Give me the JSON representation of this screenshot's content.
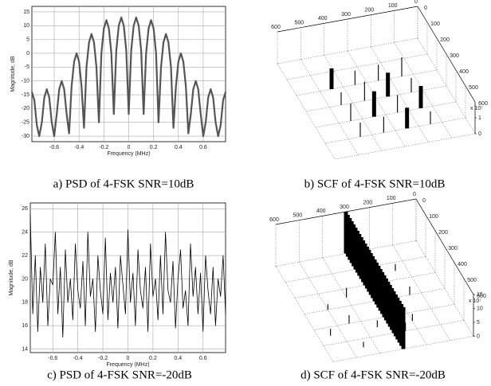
{
  "chart_data": [
    {
      "type": "line",
      "caption": "a) PSD of 4-FSK SNR=10dB",
      "x_label": "Frequency (MHz)",
      "y_label": "Magnitude, dB",
      "x": [
        -0.78,
        -0.76,
        -0.74,
        -0.72,
        -0.7,
        -0.68,
        -0.66,
        -0.64,
        -0.62,
        -0.6,
        -0.58,
        -0.56,
        -0.54,
        -0.52,
        -0.5,
        -0.48,
        -0.46,
        -0.44,
        -0.42,
        -0.4,
        -0.38,
        -0.36,
        -0.34,
        -0.32,
        -0.3,
        -0.28,
        -0.26,
        -0.24,
        -0.22,
        -0.2,
        -0.18,
        -0.16,
        -0.14,
        -0.12,
        -0.1,
        -0.08,
        -0.06,
        -0.04,
        -0.02,
        0,
        0.02,
        0.04,
        0.06,
        0.08,
        0.1,
        0.12,
        0.14,
        0.16,
        0.18,
        0.2,
        0.22,
        0.24,
        0.26,
        0.28,
        0.3,
        0.32,
        0.34,
        0.36,
        0.38,
        0.4,
        0.42,
        0.44,
        0.46,
        0.48,
        0.5,
        0.52,
        0.54,
        0.56,
        0.58,
        0.6,
        0.62,
        0.64,
        0.66,
        0.68,
        0.7,
        0.72,
        0.74,
        0.76,
        0.78
      ],
      "values": [
        -14,
        -17,
        -26,
        -30,
        -25,
        -16,
        -13,
        -16,
        -25,
        -30,
        -22,
        -13,
        -10,
        -13,
        -22,
        -29,
        -12,
        -3,
        0,
        -3,
        -12,
        -27,
        -5,
        4,
        7,
        4,
        -5,
        -25,
        0,
        9,
        12,
        9,
        0,
        -22,
        1,
        10,
        13,
        10,
        1,
        -22,
        1,
        10,
        13,
        10,
        1,
        -22,
        0,
        9,
        12,
        9,
        0,
        -25,
        -5,
        4,
        7,
        4,
        -5,
        -27,
        -12,
        -3,
        0,
        -3,
        -12,
        -29,
        -22,
        -13,
        -10,
        -13,
        -22,
        -30,
        -25,
        -16,
        -13,
        -16,
        -25,
        -30,
        -26,
        -17,
        -14
      ],
      "color": "#555555",
      "xlim": [
        -0.78,
        0.78
      ],
      "ylim": [
        -32,
        17
      ],
      "xticks": [
        -0.6,
        -0.4,
        -0.2,
        0,
        0.2,
        0.4,
        0.6
      ],
      "yticks": [
        -30,
        -25,
        -20,
        -15,
        -10,
        -5,
        0,
        5,
        10,
        15
      ],
      "grid": true
    },
    {
      "type": "spike3d",
      "caption": "b) SCF of 4-FSK SNR=10dB",
      "z_multiplier": "x 10⁷",
      "x": [
        150,
        150,
        150,
        150,
        250,
        250,
        250,
        250,
        350,
        350,
        350,
        350,
        450,
        450,
        450,
        450
      ],
      "y": [
        200,
        300,
        400,
        500,
        200,
        300,
        400,
        500,
        200,
        300,
        400,
        500,
        200,
        300,
        400,
        500
      ],
      "values": [
        1.2,
        0.9,
        1.4,
        0.8,
        1.0,
        1.5,
        1.1,
        1.3,
        0.9,
        1.2,
        1.6,
        1.0,
        1.3,
        0.8,
        1.1,
        0.9
      ],
      "color": "#000000",
      "xlim": [
        0,
        600
      ],
      "ylim": [
        0,
        600
      ],
      "zlim": [
        0,
        2
      ],
      "xticks": [
        0,
        100,
        200,
        300,
        400,
        500,
        600
      ],
      "yticks": [
        0,
        100,
        200,
        300,
        400,
        500,
        600
      ],
      "zticks": [
        0,
        1
      ],
      "grid": true
    },
    {
      "type": "line",
      "caption": "c) PSD of 4-FSK SNR=-20dB",
      "x_label": "Frequency (MHz)",
      "y_label": "Magnitude, dB",
      "x": [
        -0.78,
        -0.76,
        -0.74,
        -0.72,
        -0.7,
        -0.68,
        -0.66,
        -0.64,
        -0.62,
        -0.6,
        -0.58,
        -0.56,
        -0.54,
        -0.52,
        -0.5,
        -0.48,
        -0.46,
        -0.44,
        -0.42,
        -0.4,
        -0.38,
        -0.36,
        -0.34,
        -0.32,
        -0.3,
        -0.28,
        -0.26,
        -0.24,
        -0.22,
        -0.2,
        -0.18,
        -0.16,
        -0.14,
        -0.12,
        -0.1,
        -0.08,
        -0.06,
        -0.04,
        -0.02,
        0,
        0.02,
        0.04,
        0.06,
        0.08,
        0.1,
        0.12,
        0.14,
        0.16,
        0.18,
        0.2,
        0.22,
        0.24,
        0.26,
        0.28,
        0.3,
        0.32,
        0.34,
        0.36,
        0.38,
        0.4,
        0.42,
        0.44,
        0.46,
        0.48,
        0.5,
        0.52,
        0.54,
        0.56,
        0.58,
        0.6,
        0.62,
        0.64,
        0.66,
        0.68,
        0.7,
        0.72,
        0.74,
        0.76,
        0.78
      ],
      "values": [
        25.5,
        17,
        22,
        15.5,
        21,
        18,
        23,
        16,
        20,
        19.5,
        24,
        17,
        21,
        15,
        22.5,
        18,
        20,
        16.5,
        23,
        19,
        17.5,
        21.5,
        16,
        24,
        18.5,
        20,
        15.5,
        22,
        19,
        17,
        23.5,
        16.5,
        20.5,
        18,
        21,
        15.8,
        22,
        19.5,
        17,
        24.2,
        18,
        20.5,
        16,
        22.5,
        19,
        17.5,
        21,
        15.5,
        23,
        18.5,
        20,
        16.5,
        22,
        17,
        24,
        19,
        18,
        21.5,
        15.8,
        20,
        22.5,
        17.5,
        19,
        16,
        23,
        18.5,
        21,
        17,
        20.5,
        15.5,
        22,
        19,
        17,
        21,
        16,
        20,
        18.5,
        22,
        17
      ],
      "color": "#000000",
      "xlim": [
        -0.78,
        0.78
      ],
      "ylim": [
        13.7,
        26.5
      ],
      "xticks": [
        -0.6,
        -0.4,
        -0.2,
        0,
        0.2,
        0.4,
        0.6
      ],
      "yticks": [
        14,
        16,
        18,
        20,
        22,
        24,
        26
      ],
      "grid": true
    },
    {
      "type": "spike3d",
      "caption": "d) SCF of 4-FSK SNR=-20dB",
      "z_multiplier": "x 10⁷",
      "x": [
        300,
        300,
        300,
        300,
        300,
        300,
        300,
        300,
        300,
        300,
        300,
        300,
        300,
        300,
        300,
        300,
        300,
        300,
        300,
        300,
        300,
        300,
        300,
        300,
        300,
        300,
        300,
        300,
        300,
        300,
        300,
        150,
        200,
        400,
        450,
        500,
        150,
        250,
        350,
        450,
        550
      ],
      "y": [
        0,
        20,
        40,
        60,
        80,
        100,
        120,
        140,
        160,
        180,
        200,
        220,
        240,
        260,
        280,
        300,
        320,
        340,
        360,
        380,
        400,
        420,
        440,
        460,
        480,
        500,
        520,
        540,
        560,
        580,
        600,
        300,
        450,
        250,
        400,
        300,
        150,
        500,
        450,
        550,
        450
      ],
      "values": [
        15,
        15,
        15,
        15,
        15,
        15,
        15,
        15,
        15,
        15,
        15,
        15,
        15,
        15,
        15,
        15,
        15,
        15,
        15,
        15,
        15,
        15,
        15,
        15,
        15,
        15,
        15,
        15,
        15,
        15,
        15,
        3,
        2.5,
        3.5,
        3,
        2,
        2.5,
        3,
        2.5,
        2,
        2.5
      ],
      "color": "#000000",
      "xlim": [
        0,
        600
      ],
      "ylim": [
        0,
        600
      ],
      "zlim": [
        0,
        15
      ],
      "xticks": [
        0,
        100,
        200,
        300,
        400,
        500,
        600
      ],
      "yticks": [
        0,
        100,
        200,
        300,
        400,
        500,
        600
      ],
      "zticks": [
        0,
        5,
        10,
        15
      ],
      "grid": true
    }
  ]
}
